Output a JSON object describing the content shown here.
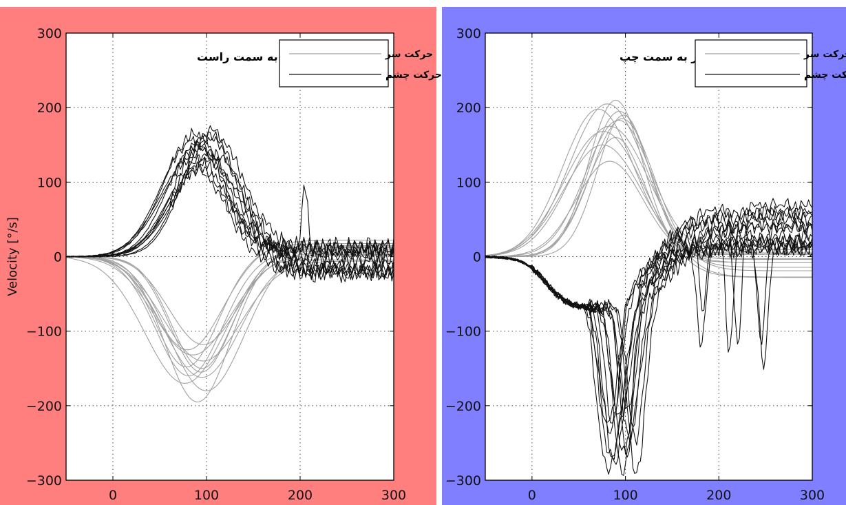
{
  "colors": {
    "left_panel_bg": "#ff7f7f",
    "right_panel_bg": "#7f7fff",
    "head_movement_line": "#a0a0a0",
    "eye_movement_line": "#111111"
  },
  "chart_data": [
    {
      "type": "line",
      "title": "چرخش سر به سمت راست",
      "ylabel": "Velocity [°/s]",
      "xlabel": "",
      "xlim": [
        -50,
        300
      ],
      "ylim": [
        -300,
        300
      ],
      "x_ticks": [
        "0",
        "100",
        "200",
        "300"
      ],
      "y_ticks": [
        "300",
        "200",
        "100",
        "0",
        "−100",
        "−200",
        "−300"
      ],
      "grid": true,
      "legend": {
        "placement": "top-right",
        "entries": [
          "حرکت سر",
          "حرکت چشم"
        ]
      },
      "traces": {
        "head": {
          "legend": "حرکت سر",
          "count": 12,
          "onset": -50,
          "peak_time_range": [
            72,
            100
          ],
          "peak_values": [
            -195,
            -180,
            -170,
            -162,
            -155,
            -148,
            -140,
            -132,
            -125,
            -118,
            -150,
            -160
          ],
          "settle_value_range": [
            -10,
            25
          ]
        },
        "eye": {
          "legend": "حرکت چشم",
          "count": 12,
          "onset": -50,
          "peak_time_range": [
            82,
            105
          ],
          "peak_values": [
            168,
            162,
            158,
            150,
            145,
            140,
            135,
            128,
            122,
            115,
            155,
            165
          ],
          "settle_value_range": [
            -25,
            20
          ],
          "spike": {
            "x": 205,
            "y": 112
          }
        }
      }
    },
    {
      "type": "line",
      "title": "چرخش سر به سمت چپ",
      "ylabel": "",
      "xlabel": "",
      "xlim": [
        -50,
        300
      ],
      "ylim": [
        -300,
        300
      ],
      "x_ticks": [
        "0",
        "100",
        "200",
        "300"
      ],
      "y_ticks": [
        "300",
        "200",
        "100",
        "0",
        "−100",
        "−200",
        "−300"
      ],
      "grid": true,
      "legend": {
        "placement": "top-right",
        "entries": [
          "حرکت سر",
          "حرکت چشم"
        ]
      },
      "traces": {
        "head": {
          "legend": "حرکت سر",
          "count": 12,
          "onset": -50,
          "peak_time_range": [
            70,
            100
          ],
          "peak_values": [
            210,
            205,
            198,
            190,
            183,
            175,
            168,
            160,
            150,
            128,
            195,
            185
          ],
          "settle_value_range": [
            -35,
            15
          ]
        },
        "eye": {
          "legend": "حرکت چشم",
          "count": 14,
          "onset": -50,
          "plateau_value": -70,
          "peak_time_range": [
            80,
            115
          ],
          "peak_values": [
            -300,
            -295,
            -285,
            -275,
            -265,
            -255,
            -245,
            -235,
            -225,
            -215,
            -290,
            -270,
            -250,
            -230
          ],
          "secondary_dips": [
            {
              "x": 185,
              "y": -130
            },
            {
              "x": 215,
              "y": -185
            },
            {
              "x": 245,
              "y": -155
            }
          ],
          "settle_value_range": [
            5,
            70
          ]
        }
      }
    }
  ]
}
